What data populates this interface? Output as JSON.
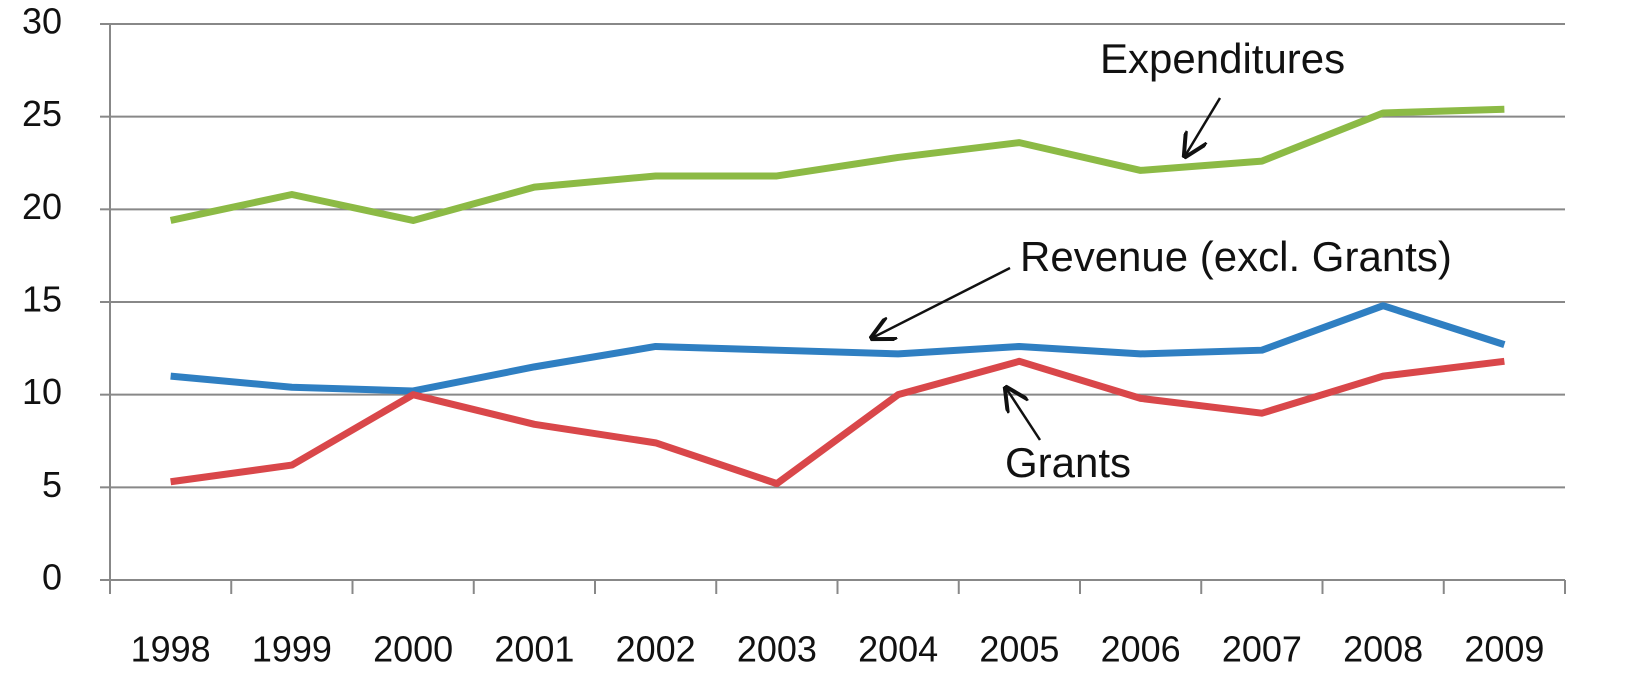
{
  "chart_data": {
    "type": "line",
    "categories": [
      "1998",
      "1999",
      "2000",
      "2001",
      "2002",
      "2003",
      "2004",
      "2005",
      "2006",
      "2007",
      "2008",
      "2009"
    ],
    "series": [
      {
        "name": "Expenditures",
        "color": "#8cba45",
        "values": [
          19.4,
          20.8,
          19.4,
          21.2,
          21.8,
          21.8,
          22.8,
          23.6,
          22.1,
          22.6,
          25.2,
          25.4
        ]
      },
      {
        "name": "Revenue (excl. Grants)",
        "color": "#2f7fc2",
        "values": [
          11.0,
          10.4,
          10.2,
          11.5,
          12.6,
          12.4,
          12.2,
          12.6,
          12.2,
          12.4,
          14.8,
          12.7
        ]
      },
      {
        "name": "Grants",
        "color": "#d9474a",
        "values": [
          5.3,
          6.2,
          10.0,
          8.4,
          7.4,
          5.2,
          10.0,
          11.8,
          9.8,
          9.0,
          11.0,
          11.8
        ]
      }
    ],
    "ylim": [
      0,
      30
    ],
    "yticks": [
      0,
      5,
      10,
      15,
      20,
      25,
      30
    ],
    "grid": true
  }
}
